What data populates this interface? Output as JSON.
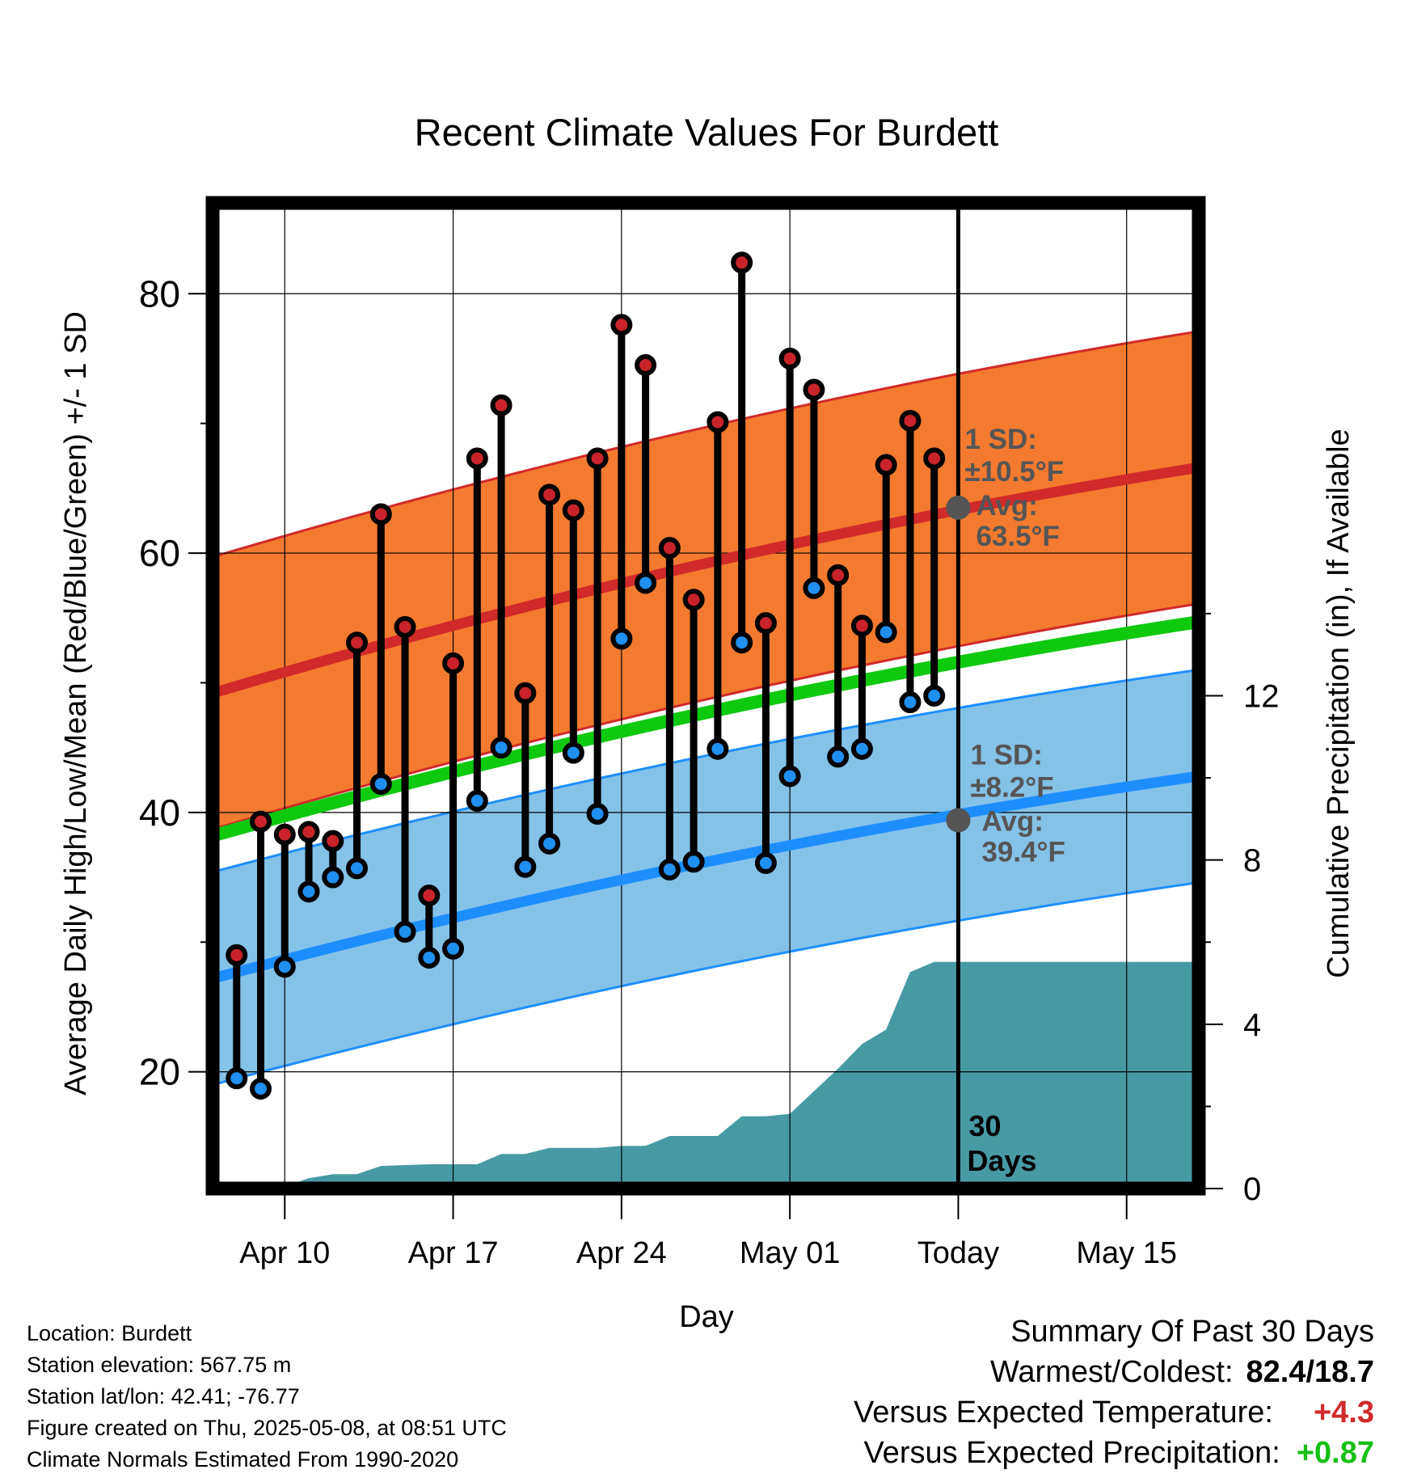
{
  "chart_data": {
    "type": "line",
    "title": "Recent Climate Values For Burdett",
    "xlabel": "Day",
    "ylabel": "Average Daily High/Low/Mean (Red/Blue/Green) +/- 1 SD",
    "y2label": "Cumulative Precipitation (in), If Available",
    "x_tick_labels": [
      "Apr 10",
      "Apr 17",
      "Apr 24",
      "May 01",
      "Today",
      "May 15"
    ],
    "y_tick_labels": [
      "20",
      "40",
      "60",
      "80"
    ],
    "y2_tick_labels": [
      "0",
      "4",
      "8",
      "12"
    ],
    "xlim": [
      "2025-04-07",
      "2025-05-18"
    ],
    "ylim": [
      11,
      87
    ],
    "y2lim": [
      0,
      24
    ],
    "today": "2025-05-08",
    "grid": true,
    "normal_days": [
      "2025-04-07",
      "2025-05-18"
    ],
    "normal_high": [
      49.2,
      66.6
    ],
    "normal_high_sd": 10.5,
    "normal_low": [
      27.2,
      42.8
    ],
    "normal_low_sd": 8.2,
    "normal_mean": [
      38.2,
      54.7
    ],
    "days": [
      "2025-04-08",
      "2025-04-09",
      "2025-04-10",
      "2025-04-11",
      "2025-04-12",
      "2025-04-13",
      "2025-04-14",
      "2025-04-15",
      "2025-04-16",
      "2025-04-17",
      "2025-04-18",
      "2025-04-19",
      "2025-04-20",
      "2025-04-21",
      "2025-04-22",
      "2025-04-23",
      "2025-04-24",
      "2025-04-25",
      "2025-04-26",
      "2025-04-27",
      "2025-04-28",
      "2025-04-29",
      "2025-04-30",
      "2025-05-01",
      "2025-05-02",
      "2025-05-03",
      "2025-05-04",
      "2025-05-05",
      "2025-05-06",
      "2025-05-07"
    ],
    "highs": [
      29.0,
      39.3,
      38.3,
      38.5,
      37.8,
      53.1,
      63.0,
      54.3,
      33.6,
      51.5,
      67.3,
      71.4,
      49.2,
      64.5,
      63.3,
      67.3,
      77.6,
      74.5,
      60.4,
      56.4,
      70.1,
      82.4,
      54.6,
      75.0,
      72.6,
      58.3,
      54.4,
      66.8,
      70.2,
      67.3
    ],
    "lows": [
      19.5,
      18.7,
      28.1,
      33.9,
      35.0,
      35.7,
      42.2,
      30.8,
      28.8,
      29.5,
      40.9,
      45.0,
      35.8,
      37.6,
      44.6,
      39.9,
      53.4,
      57.7,
      35.6,
      36.2,
      44.9,
      53.1,
      36.1,
      42.8,
      57.3,
      44.3,
      44.9,
      53.9,
      48.5,
      49.0
    ],
    "precip_days": [
      "2025-04-09",
      "2025-04-10",
      "2025-04-11",
      "2025-04-12",
      "2025-04-13",
      "2025-04-14",
      "2025-04-15",
      "2025-04-16",
      "2025-04-17",
      "2025-04-18",
      "2025-04-19",
      "2025-04-20",
      "2025-04-21",
      "2025-04-22",
      "2025-04-23",
      "2025-04-24",
      "2025-04-25",
      "2025-04-26",
      "2025-04-27",
      "2025-04-28",
      "2025-04-29",
      "2025-04-30",
      "2025-05-01",
      "2025-05-02",
      "2025-05-03",
      "2025-05-04",
      "2025-05-05",
      "2025-05-06",
      "2025-05-07",
      "2025-05-08",
      "2025-05-18"
    ],
    "precip_cumulative": [
      0.0,
      0.05,
      0.25,
      0.35,
      0.35,
      0.55,
      0.57,
      0.59,
      0.59,
      0.59,
      0.84,
      0.84,
      0.99,
      0.99,
      0.99,
      1.04,
      1.04,
      1.28,
      1.28,
      1.28,
      1.76,
      1.76,
      1.82,
      2.37,
      2.92,
      3.52,
      3.87,
      5.27,
      5.52,
      5.52,
      5.52
    ],
    "high_sd_label": [
      "1 SD:",
      "±10.5°F",
      "Avg:",
      "63.5°F"
    ],
    "low_sd_label": [
      "1 SD:",
      "±8.2°F",
      "Avg:",
      "39.4°F"
    ],
    "days_label": [
      "30",
      "Days"
    ],
    "colors": {
      "high_band": "#f37a2f",
      "high_line": "#d12a2a",
      "low_band": "#84c2e8",
      "low_line": "#1e8eff",
      "mean_line": "#0fc90f",
      "precip": "#479aa3",
      "high_dot": "#c8232a",
      "low_dot": "#1f8ff0",
      "annotation": "#555555"
    }
  },
  "info": {
    "location": "Location: Burdett",
    "elevation": "Station elevation: 567.75 m",
    "latlon": "Station lat/lon: 42.41; -76.77",
    "created": "Figure created on Thu, 2025-05-08, at 08:51 UTC",
    "normals": "Climate Normals Estimated From 1990-2020"
  },
  "summary": {
    "title": "Summary Of Past 30 Days",
    "warmest_label": "Warmest/Coldest:",
    "warmest_value": "82.4/18.7",
    "temp_label": "Versus Expected Temperature:",
    "temp_value": "+4.3",
    "temp_color": "#d12a2a",
    "precip_label": "Versus Expected Precipitation:",
    "precip_value": "+0.87",
    "precip_color": "#16c016"
  }
}
